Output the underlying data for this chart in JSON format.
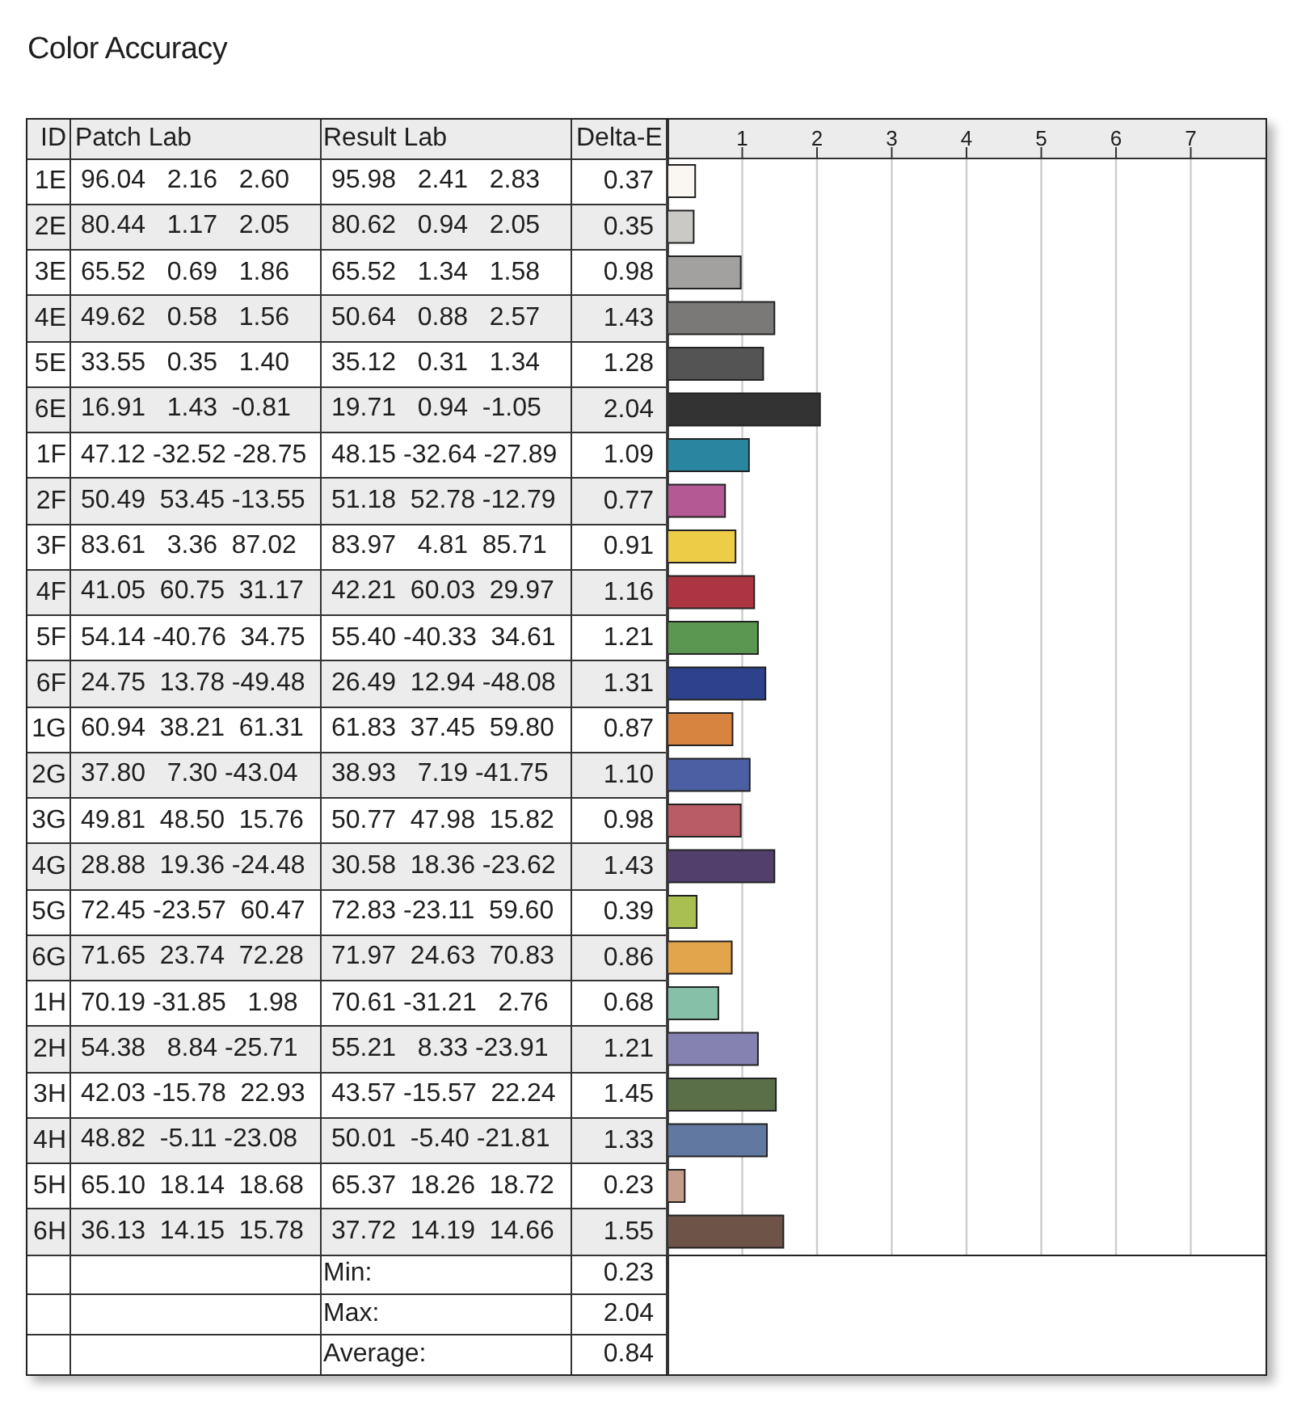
{
  "chart_data": {
    "type": "bar",
    "orientation": "horizontal",
    "title": "Color Accuracy",
    "xlabel": "Delta-E",
    "ylabel": "ID",
    "categories": [
      "1E",
      "2E",
      "3E",
      "4E",
      "5E",
      "6E",
      "1F",
      "2F",
      "3F",
      "4F",
      "5F",
      "6F",
      "1G",
      "2G",
      "3G",
      "4G",
      "5G",
      "6G",
      "1H",
      "2H",
      "3H",
      "4H",
      "5H",
      "6H"
    ],
    "values": [
      0.37,
      0.35,
      0.98,
      1.43,
      1.28,
      2.04,
      1.09,
      0.77,
      0.91,
      1.16,
      1.21,
      1.31,
      0.87,
      1.1,
      0.98,
      1.43,
      0.39,
      0.86,
      0.68,
      1.21,
      1.45,
      1.33,
      0.23,
      1.55
    ],
    "value_labels": [
      "0.37",
      "0.35",
      "0.98",
      "1.43",
      "1.28",
      "2.04",
      "1.09",
      "0.77",
      "0.91",
      "1.16",
      "1.21",
      "1.31",
      "0.87",
      "1.10",
      "0.98",
      "1.43",
      "0.39",
      "0.86",
      "0.68",
      "1.21",
      "1.45",
      "1.33",
      "0.23",
      "1.55"
    ],
    "colors": [
      "#faf6f2",
      "#cbc9c6",
      "#a3a19f",
      "#7a7978",
      "#545454",
      "#333334",
      "#2a86a0",
      "#b35a94",
      "#edcc48",
      "#ab3540",
      "#5c9752",
      "#2e428c",
      "#d6843f",
      "#4d5fa3",
      "#b95c66",
      "#533f6c",
      "#a9bf52",
      "#e3a54c",
      "#86c0a9",
      "#8581b0",
      "#5a6e48",
      "#6179a0",
      "#c49d8b",
      "#6e5448"
    ],
    "x2lim": [
      0,
      8
    ],
    "x2ticks": [
      1,
      2,
      3,
      4,
      5,
      6,
      7
    ],
    "grid": "x",
    "annotations": [
      "Patch Lab",
      "Result Lab",
      "96.04 2.16 2.60",
      "95.98 2.41 2.83",
      "80.44 1.17 2.05",
      "80.62 0.94 2.05",
      "65.52 0.69 1.86",
      "65.52 1.34 1.58",
      "49.62 0.58 1.56",
      "50.64 0.88 2.57",
      "33.55 0.35 1.40",
      "35.12 0.31 1.34",
      "16.91 1.43 -0.81",
      "19.71 0.94 -1.05",
      "47.12 -32.52 -28.75",
      "48.15 -32.64 -27.89",
      "50.49 53.45 -13.55",
      "51.18 52.78 -12.79",
      "83.61 3.36 87.02",
      "83.97 4.81 85.71",
      "41.05 60.75 31.17",
      "42.21 60.03 29.97",
      "54.14 -40.76 34.75",
      "55.40 -40.33 34.61",
      "24.75 13.78 -49.48",
      "26.49 12.94 -48.08",
      "60.94 38.21 61.31",
      "61.83 37.45 59.80",
      "37.80 7.30 -43.04",
      "38.93 7.19 -41.75",
      "49.81 48.50 15.76",
      "50.77 47.98 15.82",
      "28.88 19.36 -24.48",
      "30.58 18.36 -23.62",
      "72.45 -23.57 60.47",
      "72.83 -23.11 59.60",
      "71.65 23.74 72.28",
      "71.97 24.63 70.83",
      "70.19 -31.85 1.98",
      "70.61 -31.21 2.76",
      "54.38 8.84 -25.71",
      "55.21 8.33 -23.91",
      "42.03 -15.78 22.93",
      "43.57 -15.57 22.24",
      "48.82 -5.11 -23.08",
      "50.01 -5.40 -21.81",
      "65.10 18.14 18.68",
      "65.37 18.26 18.72",
      "36.13 14.15 15.78",
      "37.72 14.19 14.66",
      "Min:",
      "0.23",
      "Max:",
      "2.04",
      "Average:",
      "0.84"
    ]
  }
}
